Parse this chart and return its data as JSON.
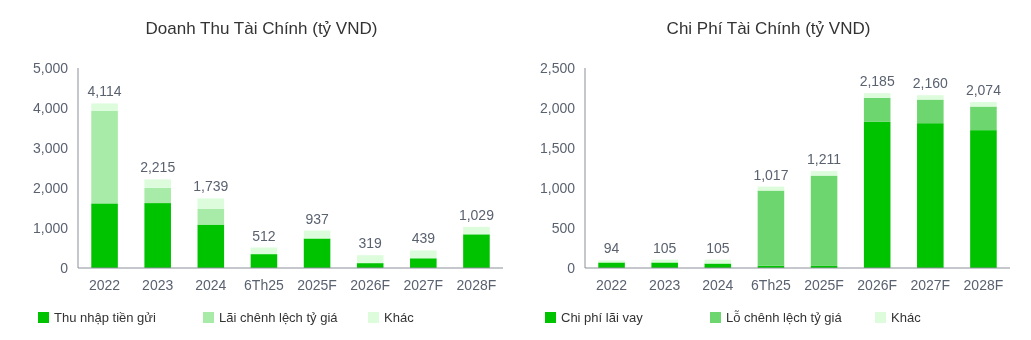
{
  "chart_data": [
    {
      "type": "bar",
      "title": "Doanh Thu Tài Chính (tỷ VND)",
      "categories": [
        "2022",
        "2023",
        "2024",
        "6Th25",
        "2025F",
        "2026F",
        "2027F",
        "2028F"
      ],
      "stacked": true,
      "ylim": [
        0,
        5000
      ],
      "yticks": [
        {
          "value": 0,
          "label": "0"
        },
        {
          "value": 1000,
          "label": "1,000"
        },
        {
          "value": 2000,
          "label": "2,000"
        },
        {
          "value": 3000,
          "label": "3,000"
        },
        {
          "value": 4000,
          "label": "4,000"
        },
        {
          "value": 5000,
          "label": "5,000"
        }
      ],
      "legend": "bottom",
      "grid": false,
      "series": [
        {
          "name": "Thu nhập tiền gửi",
          "color": "#00c300",
          "values": [
            1615,
            1623,
            1085,
            347,
            738,
            122,
            243,
            842
          ]
        },
        {
          "name": "Lãi chênh lệch tỷ giá",
          "color": "#a8eba8",
          "values": [
            2317,
            382,
            399,
            0,
            0,
            0,
            0,
            0
          ]
        },
        {
          "name": "Khác",
          "color": "#dcfcdc",
          "values": [
            182,
            210,
            255,
            165,
            199,
            197,
            196,
            187
          ]
        }
      ],
      "totals": [
        "4,114",
        "2,215",
        "1,739",
        "512",
        "937",
        "319",
        "439",
        "1,029"
      ]
    },
    {
      "type": "bar",
      "title": "Chi Phí Tài Chính (tỷ VND)",
      "categories": [
        "2022",
        "2023",
        "2024",
        "6Th25",
        "2025F",
        "2026F",
        "2027F",
        "2028F"
      ],
      "stacked": true,
      "ylim": [
        0,
        2500
      ],
      "yticks": [
        {
          "value": 0,
          "label": "0"
        },
        {
          "value": 500,
          "label": "500"
        },
        {
          "value": 1000,
          "label": "1,000"
        },
        {
          "value": 1500,
          "label": "1,500"
        },
        {
          "value": 2000,
          "label": "2,000"
        },
        {
          "value": 2500,
          "label": "2,500"
        }
      ],
      "legend": "bottom",
      "grid": false,
      "series": [
        {
          "name": "Chi phí lãi vay",
          "color": "#00c300",
          "values": [
            69,
            69,
            56,
            30,
            26,
            1827,
            1810,
            1723
          ]
        },
        {
          "name": "Lỗ chênh lệch tỷ giá",
          "color": "#6ed66e",
          "values": [
            0,
            0,
            0,
            938,
            1129,
            300,
            295,
            295
          ]
        },
        {
          "name": "Khác",
          "color": "#dcfcdc",
          "values": [
            25,
            36,
            49,
            49,
            56,
            58,
            55,
            56
          ]
        }
      ],
      "totals": [
        "94",
        "105",
        "105",
        "1,017",
        "1,211",
        "2,185",
        "2,160",
        "2,074"
      ]
    }
  ]
}
